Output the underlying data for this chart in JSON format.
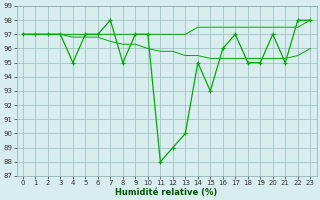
{
  "x": [
    0,
    1,
    2,
    3,
    4,
    5,
    6,
    7,
    8,
    9,
    10,
    11,
    12,
    13,
    14,
    15,
    16,
    17,
    18,
    19,
    20,
    21,
    22,
    23
  ],
  "y_main": [
    97,
    97,
    97,
    97,
    95,
    97,
    97,
    98,
    95,
    97,
    97,
    88,
    89,
    90,
    95,
    93,
    96,
    97,
    95,
    95,
    97,
    95,
    98,
    98
  ],
  "y_smooth1": [
    97,
    97,
    97,
    97,
    97,
    97,
    97,
    97,
    97,
    97,
    97,
    97,
    97,
    97,
    97.5,
    97.5,
    97.5,
    97.5,
    97.5,
    97.5,
    97.5,
    97.5,
    97.5,
    98
  ],
  "y_smooth2": [
    97,
    97,
    97,
    97,
    96.8,
    96.8,
    96.8,
    96.5,
    96.3,
    96.3,
    96.0,
    95.8,
    95.8,
    95.5,
    95.5,
    95.3,
    95.3,
    95.3,
    95.3,
    95.3,
    95.3,
    95.3,
    95.5,
    96
  ],
  "line_color": "#00aa00",
  "bg_color": "#d8eeee",
  "grid_color": "#99bbbb",
  "xlabel": "Humidité relative (%)",
  "ylim": [
    87,
    99
  ],
  "xlim": [
    -0.5,
    23.5
  ],
  "yticks": [
    87,
    88,
    89,
    90,
    91,
    92,
    93,
    94,
    95,
    96,
    97,
    98,
    99
  ],
  "xticks": [
    0,
    1,
    2,
    3,
    4,
    5,
    6,
    7,
    8,
    9,
    10,
    11,
    12,
    13,
    14,
    15,
    16,
    17,
    18,
    19,
    20,
    21,
    22,
    23
  ],
  "tick_fontsize": 5.0,
  "xlabel_fontsize": 6.0
}
